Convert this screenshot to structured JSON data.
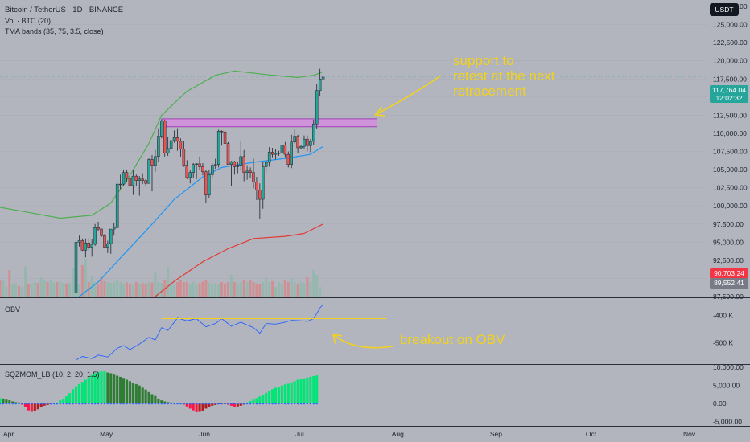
{
  "header": {
    "symbol_line": "Bitcoin / TetherUS · 1D · BINANCE",
    "volume_line": "Vol · BTC (20)",
    "bands_line": "TMA bands (35, 75, 3.5, close)"
  },
  "annotations": {
    "support_note": [
      "support to",
      "retest at the next",
      "retracement"
    ],
    "obv_note": "breakout on OBV"
  },
  "price_axis": {
    "unit": "USDT",
    "ticks": [
      "127,500.00",
      "125,000.00",
      "122,500.00",
      "120,000.00",
      "117,500.00",
      "115,000.00",
      "112,500.00",
      "110,000.00",
      "107,500.00",
      "105,000.00",
      "102,500.00",
      "100,000.00",
      "97,500.00",
      "95,000.00",
      "92,500.00",
      "90,000.00",
      "87,500.00"
    ]
  },
  "price_tags": {
    "last": {
      "price": "117,764.04",
      "countdown": "12:02:32",
      "color": "#26a69a"
    },
    "red": {
      "label": "90,703.24",
      "color": "#f23645"
    },
    "gray": {
      "label": "89,552.41",
      "color": "#787b86"
    }
  },
  "obv_axis": {
    "ticks": [
      "-400 K",
      "-500 K"
    ]
  },
  "mom_axis": {
    "ticks": [
      "10,000.00",
      "5,000.00",
      "0.00",
      "-5,000.00"
    ]
  },
  "panes": {
    "obv_title": "OBV",
    "mom_title": "SQZMOM_LB (10, 2, 20, 1.5)"
  },
  "time_axis": {
    "labels": [
      "Apr",
      "May",
      "Jun",
      "Jul",
      "Aug",
      "Sep",
      "Oct",
      "Nov"
    ]
  },
  "colors": {
    "background": "#b2b5be",
    "up": "#26a69a",
    "down": "#ef5350",
    "band_upper": "#4caf50",
    "band_mid": "#2196f3",
    "band_lower": "#e53935",
    "zone": "#ce93d8",
    "obv": "#2962ff",
    "annotation": "#f2d21b",
    "mom_bright_green": "#00e676",
    "mom_dark_green": "#2e7d32",
    "mom_bright_red": "#ff1744",
    "mom_dark_red": "#b71c1c"
  },
  "chart_data": [
    {
      "type": "candlestick",
      "ylim": [
        87500,
        127500
      ],
      "y_scale": "linear",
      "x_range": [
        "2025-04-01",
        "2025-11-10"
      ],
      "ohlc": [
        [
          "2025-04-25",
          88000,
          95500,
          87800,
          95000
        ],
        [
          "2025-04-26",
          95000,
          95900,
          94400,
          95200
        ],
        [
          "2025-04-27",
          95200,
          95500,
          93800,
          93900
        ],
        [
          "2025-04-28",
          93900,
          95500,
          92900,
          94900
        ],
        [
          "2025-04-29",
          94900,
          95500,
          93900,
          94300
        ],
        [
          "2025-04-30",
          94300,
          95400,
          93000,
          94700
        ],
        [
          "2025-05-01",
          94700,
          97500,
          94500,
          97000
        ],
        [
          "2025-05-02",
          97000,
          97800,
          96500,
          96800
        ],
        [
          "2025-05-03",
          96800,
          96900,
          95700,
          95900
        ],
        [
          "2025-05-04",
          95900,
          96100,
          94200,
          94300
        ],
        [
          "2025-05-05",
          94300,
          95200,
          93500,
          94800
        ],
        [
          "2025-05-06",
          94800,
          96800,
          93400,
          96800
        ],
        [
          "2025-05-07",
          96800,
          97700,
          95900,
          97000
        ],
        [
          "2025-05-08",
          97000,
          103500,
          96900,
          103000
        ],
        [
          "2025-05-09",
          103000,
          104300,
          102300,
          103000
        ],
        [
          "2025-05-10",
          103000,
          104900,
          102800,
          104600
        ],
        [
          "2025-05-11",
          104600,
          104900,
          103300,
          103800
        ],
        [
          "2025-05-12",
          103800,
          105800,
          101000,
          102800
        ],
        [
          "2025-05-13",
          102800,
          104900,
          101500,
          104100
        ],
        [
          "2025-05-14",
          104100,
          104300,
          102700,
          103500
        ],
        [
          "2025-05-15",
          103500,
          104100,
          101400,
          103700
        ],
        [
          "2025-05-16",
          103700,
          104500,
          103000,
          103500
        ],
        [
          "2025-05-17",
          103500,
          103700,
          102700,
          103100
        ],
        [
          "2025-05-18",
          103100,
          106600,
          103100,
          106400
        ],
        [
          "2025-05-19",
          106400,
          107000,
          102000,
          105600
        ],
        [
          "2025-05-20",
          105600,
          107700,
          104700,
          106800
        ],
        [
          "2025-05-21",
          106800,
          110700,
          106100,
          109600
        ],
        [
          "2025-05-22",
          109600,
          111900,
          109300,
          111700
        ],
        [
          "2025-05-23",
          111700,
          111900,
          106800,
          107300
        ],
        [
          "2025-05-24",
          107300,
          109500,
          106900,
          107900
        ],
        [
          "2025-05-25",
          107900,
          109400,
          106700,
          109000
        ],
        [
          "2025-05-26",
          109000,
          110400,
          108700,
          109400
        ],
        [
          "2025-05-27",
          109400,
          110700,
          107600,
          108900
        ],
        [
          "2025-05-28",
          108900,
          109300,
          106800,
          107800
        ],
        [
          "2025-05-29",
          107800,
          108900,
          105400,
          105600
        ],
        [
          "2025-05-30",
          105600,
          106300,
          103700,
          103900
        ],
        [
          "2025-05-31",
          103900,
          104900,
          103100,
          104600
        ],
        [
          "2025-06-01",
          104600,
          105900,
          103900,
          105700
        ],
        [
          "2025-06-02",
          105700,
          105900,
          103700,
          105800
        ],
        [
          "2025-06-03",
          105800,
          106800,
          104900,
          105400
        ],
        [
          "2025-06-04",
          105400,
          105900,
          104200,
          104700
        ],
        [
          "2025-06-05",
          104700,
          105000,
          100400,
          101500
        ],
        [
          "2025-06-06",
          101500,
          105000,
          101100,
          104300
        ],
        [
          "2025-06-07",
          104300,
          105900,
          103900,
          105600
        ],
        [
          "2025-06-08",
          105600,
          106500,
          105100,
          105700
        ],
        [
          "2025-06-09",
          105700,
          110500,
          105300,
          110300
        ],
        [
          "2025-06-10",
          110300,
          110400,
          108300,
          110200
        ],
        [
          "2025-06-11",
          110200,
          110400,
          108100,
          108600
        ],
        [
          "2025-06-12",
          108600,
          108800,
          105700,
          105700
        ],
        [
          "2025-06-13",
          105700,
          106200,
          102700,
          106100
        ],
        [
          "2025-06-14",
          106100,
          106200,
          104300,
          105400
        ],
        [
          "2025-06-15",
          105400,
          106100,
          104500,
          105600
        ],
        [
          "2025-06-16",
          105600,
          108900,
          104900,
          106800
        ],
        [
          "2025-06-17",
          106800,
          107700,
          103400,
          104600
        ],
        [
          "2025-06-18",
          104600,
          105600,
          103600,
          104800
        ],
        [
          "2025-06-19",
          104800,
          105300,
          103900,
          104600
        ],
        [
          "2025-06-20",
          104600,
          106500,
          102400,
          103300
        ],
        [
          "2025-06-21",
          103300,
          104000,
          100800,
          102200
        ],
        [
          "2025-06-22",
          102200,
          103100,
          98200,
          100900
        ],
        [
          "2025-06-23",
          100900,
          106000,
          99600,
          105400
        ],
        [
          "2025-06-24",
          105400,
          106300,
          104600,
          106000
        ],
        [
          "2025-06-25",
          106000,
          108100,
          105400,
          107400
        ],
        [
          "2025-06-26",
          107400,
          108000,
          106700,
          107100
        ],
        [
          "2025-06-27",
          107100,
          107800,
          106400,
          107300
        ],
        [
          "2025-06-28",
          107300,
          107600,
          106900,
          107300
        ],
        [
          "2025-06-29",
          107300,
          108500,
          107200,
          108400
        ],
        [
          "2025-06-30",
          108400,
          108800,
          106700,
          107100
        ],
        [
          "2025-07-01",
          107100,
          107500,
          105300,
          105700
        ],
        [
          "2025-07-02",
          105700,
          109800,
          105200,
          108800
        ],
        [
          "2025-07-03",
          108800,
          110500,
          108600,
          109600
        ],
        [
          "2025-07-04",
          109600,
          109800,
          107300,
          108000
        ],
        [
          "2025-07-05",
          108000,
          108400,
          107800,
          108200
        ],
        [
          "2025-07-06",
          108200,
          109700,
          107900,
          109200
        ],
        [
          "2025-07-07",
          109200,
          109700,
          107500,
          108300
        ],
        [
          "2025-07-08",
          108300,
          109200,
          107400,
          108900
        ],
        [
          "2025-07-09",
          108900,
          111900,
          108400,
          111300
        ],
        [
          "2025-07-10",
          111300,
          116800,
          110600,
          115900
        ],
        [
          "2025-07-11",
          115900,
          118900,
          115200,
          117500
        ],
        [
          "2025-07-12",
          117500,
          118200,
          116900,
          117764.04
        ]
      ],
      "support_zone": {
        "start": "2025-05-22",
        "end": "2025-07-29",
        "low": 110900,
        "high": 112000
      },
      "current_price_line": 117764.04
    },
    {
      "type": "line",
      "name": "TMA bands (35, 75, 3.5, close)",
      "x_range": [
        "2025-04-01",
        "2025-07-12"
      ],
      "upper_points": [
        [
          "2025-04-01",
          99800
        ],
        [
          "2025-04-10",
          99100
        ],
        [
          "2025-04-20",
          98300
        ],
        [
          "2025-04-30",
          98700
        ],
        [
          "2025-05-06",
          100400
        ],
        [
          "2025-05-12",
          104200
        ],
        [
          "2025-05-18",
          108600
        ],
        [
          "2025-05-22",
          112500
        ],
        [
          "2025-05-30",
          115800
        ],
        [
          "2025-06-08",
          118000
        ],
        [
          "2025-06-14",
          118600
        ],
        [
          "2025-06-24",
          118100
        ],
        [
          "2025-07-04",
          117700
        ],
        [
          "2025-07-09",
          118000
        ],
        [
          "2025-07-12",
          118500
        ]
      ],
      "middle_points": [
        [
          "2025-04-26",
          87500
        ],
        [
          "2025-05-02",
          89500
        ],
        [
          "2025-05-10",
          93300
        ],
        [
          "2025-05-18",
          97000
        ],
        [
          "2025-05-26",
          100900
        ],
        [
          "2025-06-04",
          104000
        ],
        [
          "2025-06-10",
          105300
        ],
        [
          "2025-06-20",
          106000
        ],
        [
          "2025-07-01",
          106600
        ],
        [
          "2025-07-08",
          107100
        ],
        [
          "2025-07-12",
          108200
        ]
      ],
      "lower_points": [
        [
          "2025-05-20",
          87500
        ],
        [
          "2025-05-26",
          89600
        ],
        [
          "2025-06-04",
          92300
        ],
        [
          "2025-06-12",
          94100
        ],
        [
          "2025-06-20",
          95500
        ],
        [
          "2025-06-30",
          95800
        ],
        [
          "2025-07-06",
          96200
        ],
        [
          "2025-07-12",
          97500
        ]
      ]
    },
    {
      "type": "bar",
      "name": "Vol · BTC (20)",
      "x_range": [
        "2025-04-01",
        "2025-07-12"
      ],
      "notes": "volume bars overlaid on price pane, relative heights",
      "values_relative": [
        0.35,
        0.33,
        0.2,
        0.55,
        0.25,
        0.28,
        0.22,
        0.2,
        0.62,
        0.27,
        0.25,
        0.3,
        0.28,
        0.4,
        0.33,
        0.3,
        0.35,
        0.29,
        0.3,
        0.3,
        0.28,
        0.27,
        0.28,
        0.6,
        0.3,
        0.25,
        0.65,
        0.78,
        0.3,
        0.42,
        0.3,
        0.27,
        0.4,
        0.32,
        0.3,
        0.28,
        0.3,
        0.35,
        0.3,
        0.27,
        0.29,
        0.26,
        0.24,
        0.3,
        0.25,
        0.28,
        0.26,
        0.3,
        0.29,
        0.5,
        0.3,
        0.28,
        0.35,
        0.62,
        0.3,
        0.27,
        0.3,
        0.35,
        0.3,
        0.3,
        0.25,
        0.3,
        0.26,
        0.28,
        0.31,
        0.34,
        0.29,
        0.27,
        0.28,
        0.25,
        0.3,
        0.27,
        0.3,
        0.45,
        0.3,
        0.28,
        0.3,
        0.35,
        0.3,
        0.35,
        0.3,
        0.27,
        0.25,
        0.3,
        0.4,
        0.3,
        0.32,
        0.2,
        0.3,
        0.25,
        0.35,
        0.3,
        0.38,
        0.3,
        0.26,
        0.3,
        0.28,
        0.4,
        0.3,
        0.55,
        0.45,
        0.2
      ]
    },
    {
      "type": "line",
      "name": "OBV",
      "ylim": [
        -575000,
        -340000
      ],
      "x_range": [
        "2025-04-01",
        "2025-11-10"
      ],
      "points": [
        [
          "2025-04-25",
          -563000
        ],
        [
          "2025-04-27",
          -550000
        ],
        [
          "2025-04-30",
          -558000
        ],
        [
          "2025-05-02",
          -545000
        ],
        [
          "2025-05-05",
          -552000
        ],
        [
          "2025-05-08",
          -520000
        ],
        [
          "2025-05-10",
          -510000
        ],
        [
          "2025-05-12",
          -525000
        ],
        [
          "2025-05-15",
          -505000
        ],
        [
          "2025-05-18",
          -480000
        ],
        [
          "2025-05-20",
          -490000
        ],
        [
          "2025-05-22",
          -445000
        ],
        [
          "2025-05-24",
          -455000
        ],
        [
          "2025-05-27",
          -410000
        ],
        [
          "2025-05-30",
          -420000
        ],
        [
          "2025-06-02",
          -412000
        ],
        [
          "2025-06-05",
          -442000
        ],
        [
          "2025-06-08",
          -430000
        ],
        [
          "2025-06-10",
          -412000
        ],
        [
          "2025-06-13",
          -440000
        ],
        [
          "2025-06-16",
          -425000
        ],
        [
          "2025-06-20",
          -445000
        ],
        [
          "2025-06-22",
          -465000
        ],
        [
          "2025-06-24",
          -430000
        ],
        [
          "2025-06-27",
          -432000
        ],
        [
          "2025-06-30",
          -425000
        ],
        [
          "2025-07-02",
          -418000
        ],
        [
          "2025-07-05",
          -420000
        ],
        [
          "2025-07-07",
          -422000
        ],
        [
          "2025-07-09",
          -412000
        ],
        [
          "2025-07-11",
          -373000
        ],
        [
          "2025-07-12",
          -360000
        ]
      ],
      "level_line": {
        "value": -412000,
        "start": "2025-05-22",
        "end": "2025-08-01"
      }
    },
    {
      "type": "bar",
      "name": "SQZMOM_LB (10, 2, 20, 1.5)",
      "ylim": [
        -6200,
        10500
      ],
      "x_range": [
        "2025-04-01",
        "2025-11-10"
      ],
      "x_start": "2025-04-01",
      "values": [
        1500,
        1400,
        1100,
        900,
        600,
        400,
        300,
        -300,
        -900,
        -1900,
        -2300,
        -2100,
        -1600,
        -900,
        -600,
        -400,
        -200,
        100,
        300,
        900,
        1300,
        2000,
        2900,
        4000,
        4800,
        5400,
        6000,
        6600,
        7300,
        7900,
        8400,
        8800,
        8900,
        8900,
        8600,
        8400,
        8000,
        7700,
        7400,
        7100,
        6600,
        6200,
        5800,
        5400,
        5000,
        4400,
        3900,
        3200,
        2600,
        2100,
        1400,
        900,
        600,
        400,
        300,
        250,
        200,
        100,
        -300,
        -800,
        -1400,
        -1900,
        -2400,
        -2300,
        -2000,
        -1400,
        -1000,
        -600,
        -400,
        -200,
        -150,
        -100,
        -300,
        -600,
        -900,
        -800,
        -600,
        -300,
        300,
        700,
        1100,
        1500,
        2000,
        2500,
        3000,
        3500,
        4000,
        4400,
        4700,
        5000,
        5300,
        5500,
        5900,
        6200,
        6600,
        6800,
        7000,
        7200,
        7400,
        7600,
        7800
      ],
      "squeeze_dots_color": "#2962ff"
    }
  ]
}
